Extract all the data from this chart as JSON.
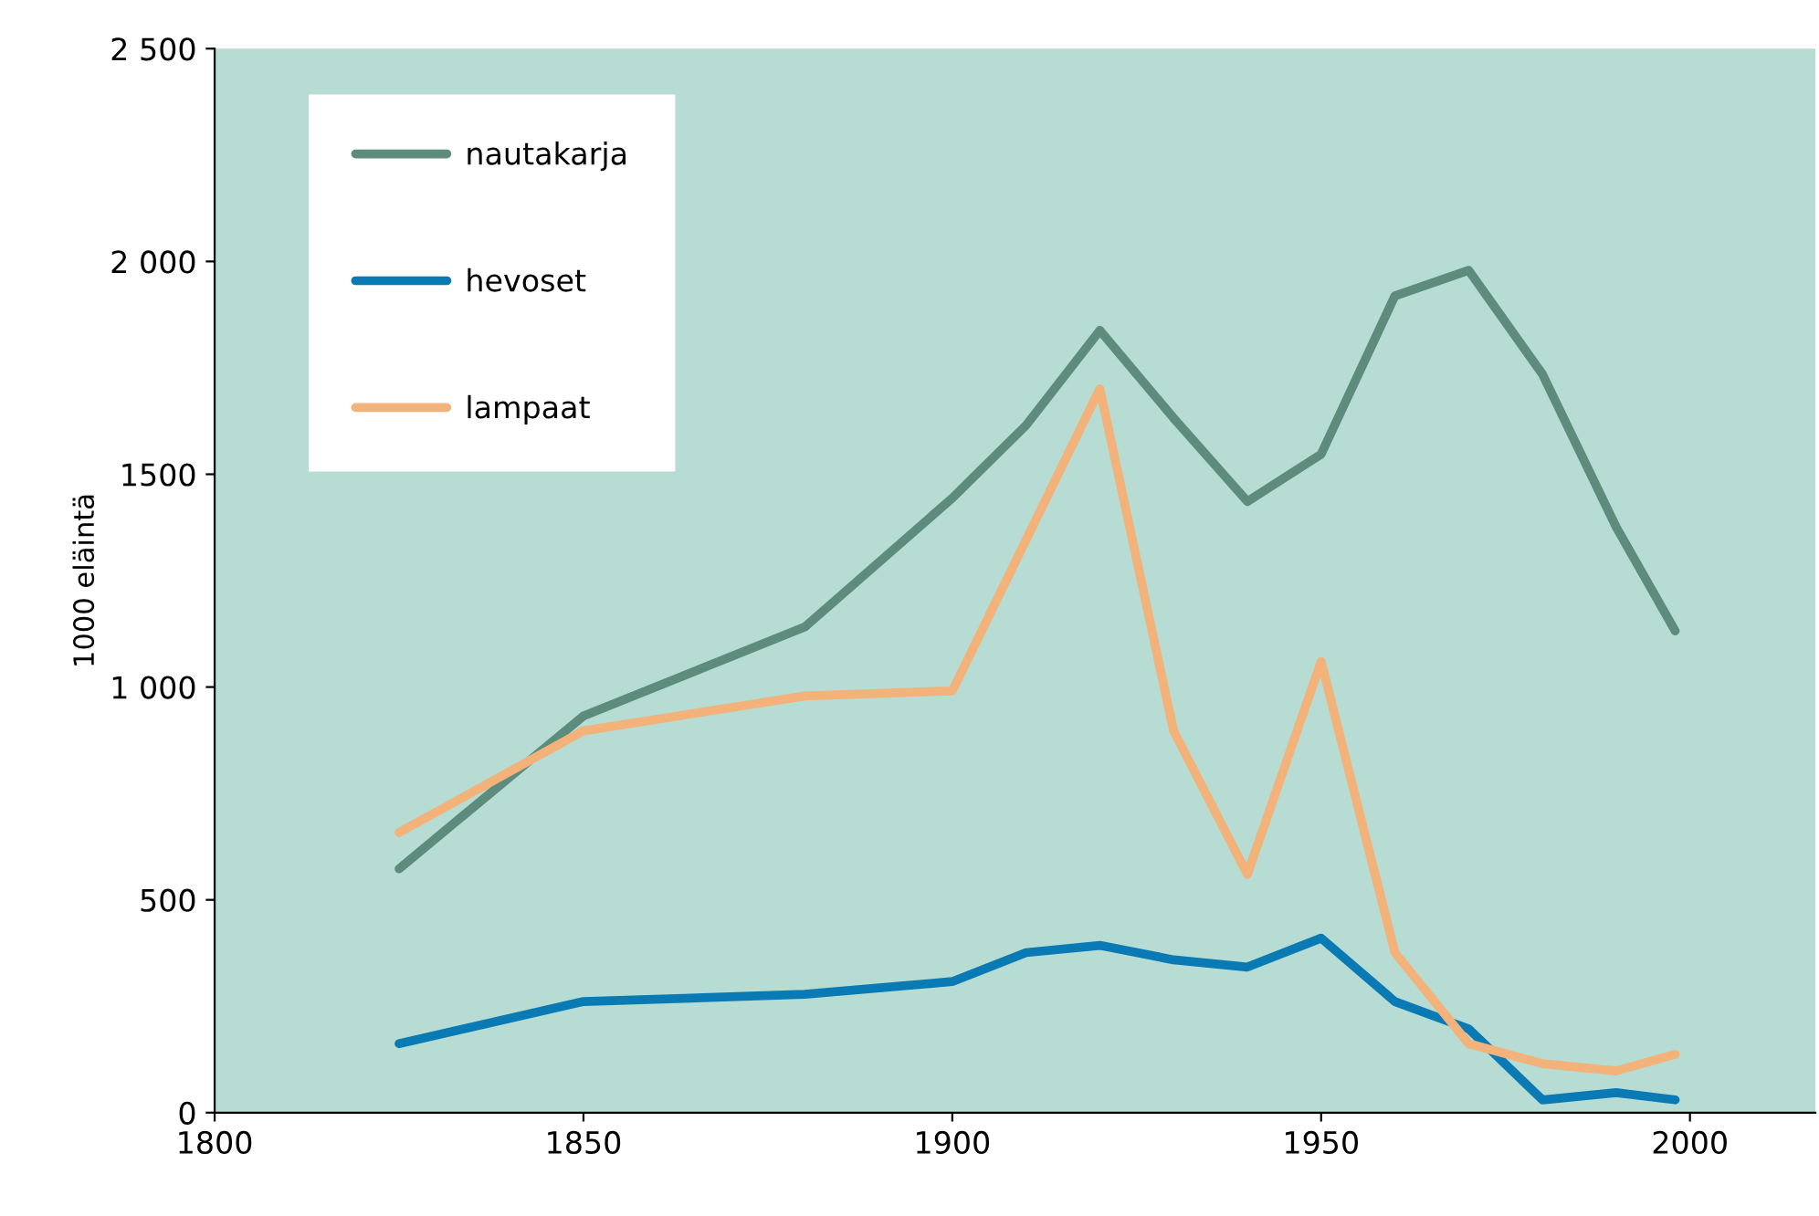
{
  "chart_data": {
    "type": "line",
    "ylabel": "1000 eläintä",
    "x": [
      1825,
      1850,
      1880,
      1900,
      1910,
      1920,
      1930,
      1940,
      1950,
      1960,
      1970,
      1980,
      1990,
      1998
    ],
    "series": [
      {
        "name": "nautakarja",
        "color": "#5e8c7c",
        "values": [
          573,
          932,
          1141,
          1444,
          1615,
          1838,
          1632,
          1436,
          1547,
          1919,
          1979,
          1735,
          1376,
          1132
        ]
      },
      {
        "name": "hevoset",
        "color": "#0a7ab5",
        "values": [
          162,
          261,
          278,
          308,
          376,
          393,
          359,
          342,
          410,
          261,
          197,
          30,
          47,
          30
        ]
      },
      {
        "name": "lampaat",
        "color": "#f2b27a",
        "values": [
          658,
          897,
          979,
          991,
          1346,
          1701,
          897,
          560,
          1060,
          376,
          162,
          115,
          98,
          137
        ]
      }
    ],
    "xlim": [
      1800,
      2017
    ],
    "xticks": [
      1800,
      1850,
      1900,
      1950,
      2000
    ],
    "ylim": [
      0,
      2500
    ],
    "yticks": [
      0,
      500,
      {
        "value": 1000,
        "label": "1 000"
      },
      1500,
      {
        "value": 2000,
        "label": "2 000"
      },
      {
        "value": 2500,
        "label": "2 500"
      }
    ],
    "grid": false,
    "legend": "top left",
    "marker": "none",
    "line_style": "solid"
  }
}
